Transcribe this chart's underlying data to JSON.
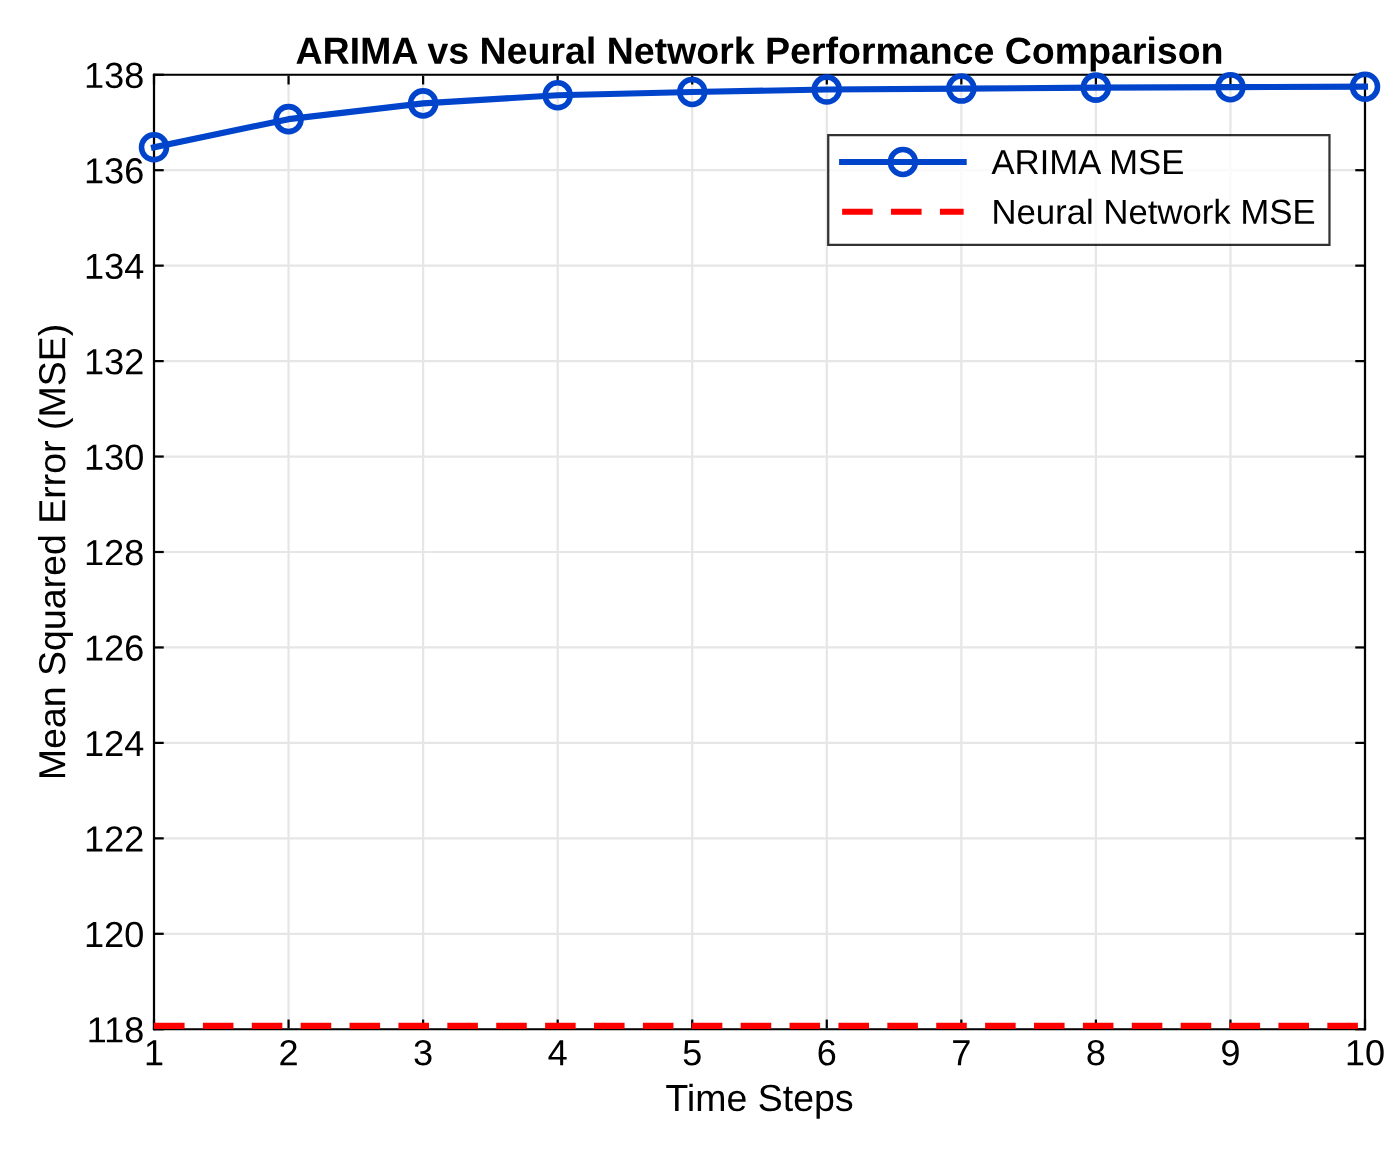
{
  "chart_data": {
    "type": "line",
    "title": "ARIMA vs Neural Network Performance Comparison",
    "xlabel": "Time Steps",
    "ylabel": "Mean Squared Error (MSE)",
    "x": [
      1,
      2,
      3,
      4,
      5,
      6,
      7,
      8,
      9,
      10
    ],
    "series": [
      {
        "name": "ARIMA MSE",
        "color": "#0044cc",
        "marker": "circle",
        "line_style": "solid",
        "values": [
          136.48,
          137.07,
          137.4,
          137.57,
          137.64,
          137.69,
          137.71,
          137.73,
          137.74,
          137.75
        ]
      },
      {
        "name": "Neural Network MSE",
        "color": "#ff0000",
        "marker": "none",
        "line_style": "dashed",
        "values": [
          118.07,
          118.07,
          118.07,
          118.07,
          118.07,
          118.07,
          118.07,
          118.07,
          118.07,
          118.07
        ]
      }
    ],
    "xlim": [
      1,
      10
    ],
    "xticks": [
      1,
      2,
      3,
      4,
      5,
      6,
      7,
      8,
      9,
      10
    ],
    "ylim": [
      118,
      138
    ],
    "yticks": [
      118,
      120,
      122,
      124,
      126,
      128,
      130,
      132,
      134,
      136,
      138
    ],
    "grid": true,
    "legend": "top right"
  }
}
